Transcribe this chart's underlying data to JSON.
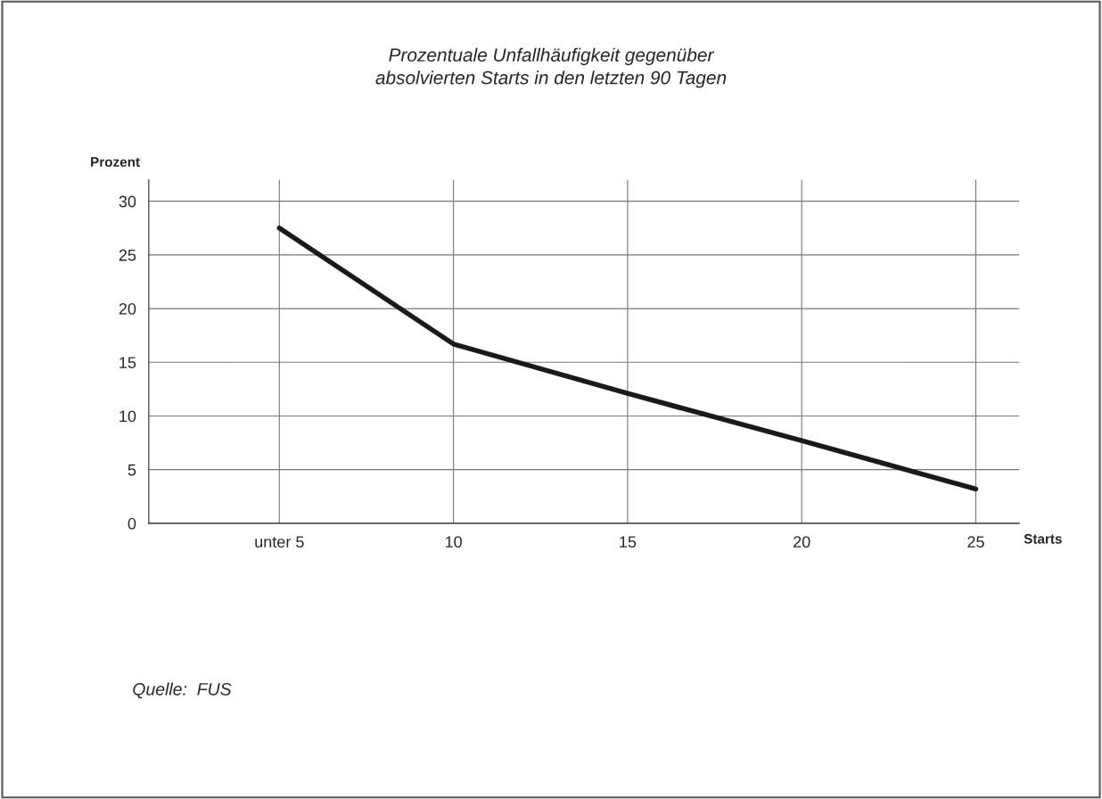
{
  "chart_data": {
    "type": "line",
    "title": "Prozentuale Unfallhäufigkeit gegenüber\nabsolvierten Starts in den letzten 90 Tagen",
    "xlabel": "Starts",
    "ylabel": "Prozent",
    "categories": [
      "unter 5",
      "10",
      "15",
      "20",
      "25"
    ],
    "series": [
      {
        "color": "#1a1a1a",
        "values": [
          27.5,
          16.7,
          12.1,
          7.7,
          3.2
        ]
      }
    ],
    "ylim": [
      0,
      32
    ],
    "yticks": [
      0,
      5,
      10,
      15,
      20,
      25,
      30
    ],
    "grid": true,
    "marker": "none",
    "line_style": "solid",
    "annotations": [
      "Quelle:  FUS"
    ]
  }
}
